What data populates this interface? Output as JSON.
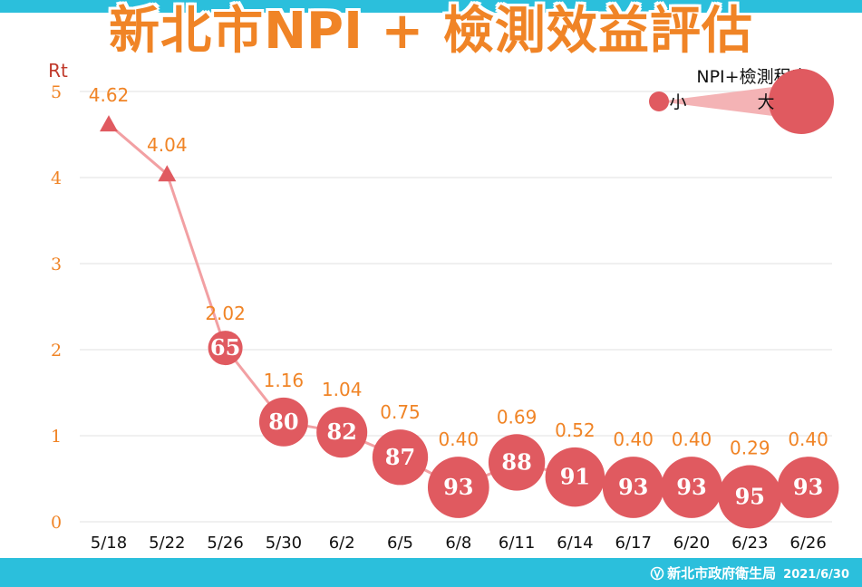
{
  "header": {
    "title_prefix": "新北市",
    "title_latin": "NPI",
    "title_suffix": " + 檢測效益評估"
  },
  "legend": {
    "title": "NPI+檢測程度",
    "small_label": "小",
    "large_label": "大"
  },
  "footer": {
    "org": "新北市政府衛生局",
    "date": "2021/6/30"
  },
  "colors": {
    "accent_orange": "#f08426",
    "bubble_red": "#e05a60",
    "line_pink": "#f2a0a3",
    "footer_blue": "#2bbfdc",
    "axis_label_red": "#c0392b"
  },
  "chart_data": {
    "type": "line",
    "title": "新北市NPI + 檢測效益評估",
    "ylabel": "Rt",
    "xlabel": "",
    "ylim": [
      0,
      5
    ],
    "yticks": [
      0,
      1,
      2,
      3,
      4,
      5
    ],
    "grid": true,
    "categories": [
      "5/18",
      "5/22",
      "5/26",
      "5/30",
      "6/2",
      "6/5",
      "6/8",
      "6/11",
      "6/14",
      "6/17",
      "6/20",
      "6/23",
      "6/26"
    ],
    "series": [
      {
        "values": [
          4.62,
          4.04,
          2.02,
          1.16,
          1.04,
          0.75,
          0.4,
          0.69,
          0.52,
          0.4,
          0.4,
          0.29,
          0.4
        ],
        "value_labels": [
          "4.62",
          "4.04",
          "2.02",
          "1.16",
          "1.04",
          "0.75",
          "0.40",
          "0.69",
          "0.52",
          "0.40",
          "0.40",
          "0.29",
          "0.40"
        ],
        "npi_testing_level": [
          null,
          null,
          65,
          80,
          82,
          87,
          93,
          88,
          91,
          93,
          93,
          95,
          93
        ],
        "npi_testing_labels": [
          "",
          "",
          "65",
          "80",
          "82",
          "87",
          "93",
          "88",
          "91",
          "93",
          "93",
          "95",
          "93"
        ]
      }
    ]
  }
}
